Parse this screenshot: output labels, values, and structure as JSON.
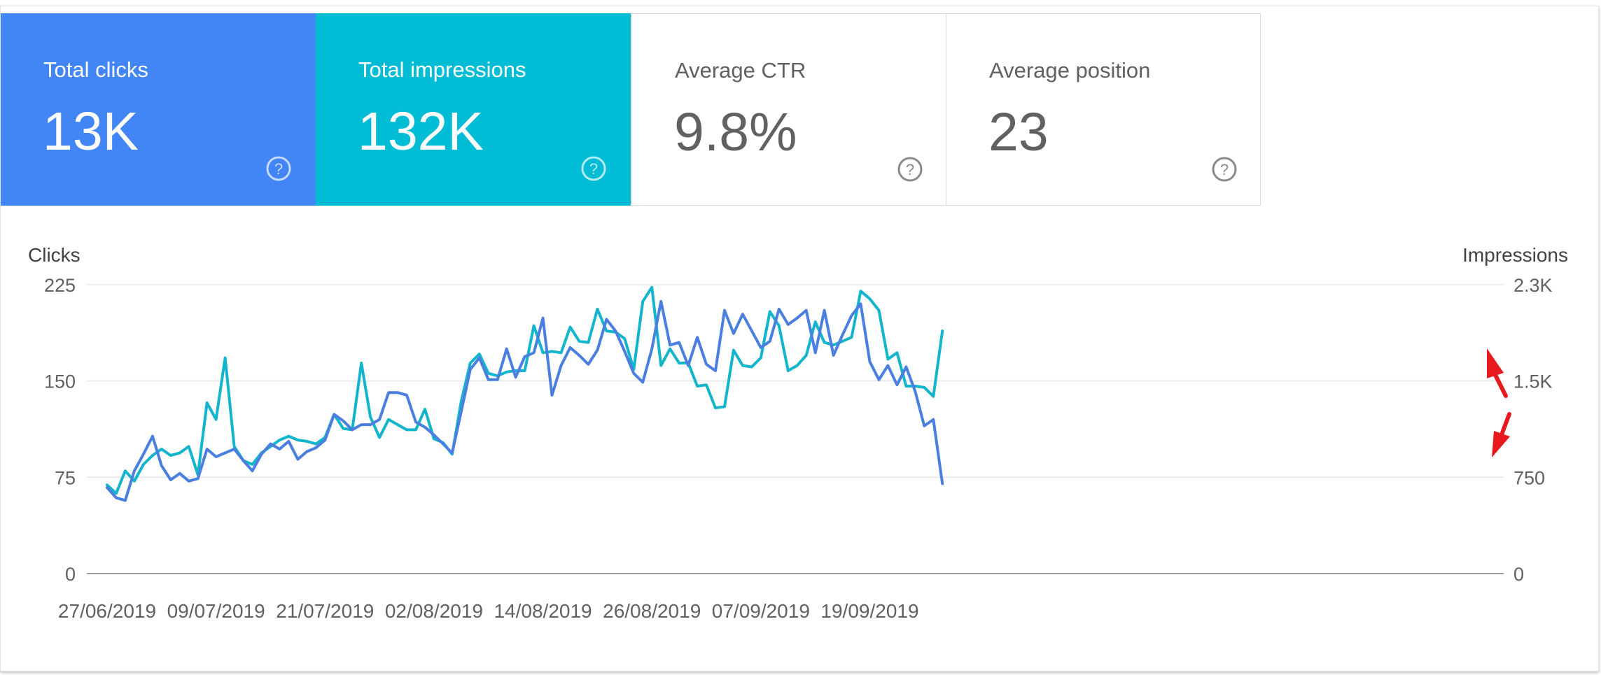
{
  "metrics": [
    {
      "label": "Total clicks",
      "value": "13K",
      "color": "#4285f4"
    },
    {
      "label": "Total impressions",
      "value": "132K",
      "color": "#00bcd4"
    },
    {
      "label": "Average CTR",
      "value": "9.8%"
    },
    {
      "label": "Average position",
      "value": "23"
    }
  ],
  "chart_data": {
    "type": "line",
    "y_left_label": "Clicks",
    "y_right_label": "Impressions",
    "y_left_ticks": [
      "0",
      "75",
      "150",
      "225"
    ],
    "y_right_ticks": [
      "0",
      "750",
      "1.5K",
      "2.3K"
    ],
    "ylim_left": [
      0,
      225
    ],
    "ylim_right": [
      0,
      2250
    ],
    "x_tick_labels": [
      "27/06/2019",
      "09/07/2019",
      "21/07/2019",
      "02/08/2019",
      "14/08/2019",
      "26/08/2019",
      "07/09/2019",
      "19/09/2019"
    ],
    "x_start": "27/06/2019",
    "x_end": "26/09/2019",
    "grid": true,
    "series": [
      {
        "name": "Clicks",
        "axis": "left",
        "color": "#4a7fe0",
        "values": [
          67,
          59,
          57,
          80,
          93,
          107,
          84,
          73,
          78,
          72,
          74,
          97,
          91,
          94,
          97,
          88,
          80,
          93,
          101,
          97,
          103,
          89,
          95,
          98,
          104,
          124,
          119,
          112,
          116,
          116,
          120,
          141,
          141,
          139,
          118,
          114,
          108,
          101,
          94,
          126,
          159,
          168,
          151,
          151,
          175,
          153,
          169,
          172,
          199,
          139,
          162,
          176,
          170,
          163,
          174,
          198,
          189,
          173,
          156,
          149,
          175,
          212,
          178,
          180,
          162,
          184,
          163,
          158,
          205,
          187,
          202,
          189,
          176,
          181,
          206,
          194,
          199,
          205,
          172,
          205,
          170,
          186,
          201,
          210,
          165,
          151,
          162,
          147,
          161,
          142,
          115,
          120,
          70
        ]
      },
      {
        "name": "Impressions",
        "axis": "right",
        "color": "#12b5cb",
        "values": [
          690,
          625,
          800,
          720,
          850,
          920,
          970,
          920,
          940,
          990,
          770,
          1330,
          1200,
          1680,
          990,
          880,
          850,
          940,
          990,
          1040,
          1070,
          1040,
          1030,
          1010,
          1060,
          1240,
          1130,
          1120,
          1640,
          1220,
          1060,
          1200,
          1160,
          1120,
          1120,
          1280,
          1050,
          1020,
          930,
          1340,
          1640,
          1710,
          1560,
          1540,
          1570,
          1580,
          1580,
          1930,
          1720,
          1730,
          1720,
          1920,
          1810,
          1800,
          2060,
          1890,
          1880,
          1830,
          1590,
          2120,
          2230,
          1620,
          1750,
          1640,
          1640,
          1460,
          1470,
          1290,
          1300,
          1740,
          1620,
          1610,
          1680,
          2040,
          1930,
          1580,
          1620,
          1700,
          1960,
          1800,
          1780,
          1810,
          1840,
          2200,
          2140,
          2050,
          1670,
          1720,
          1460,
          1460,
          1450,
          1380,
          1890
        ]
      }
    ]
  }
}
